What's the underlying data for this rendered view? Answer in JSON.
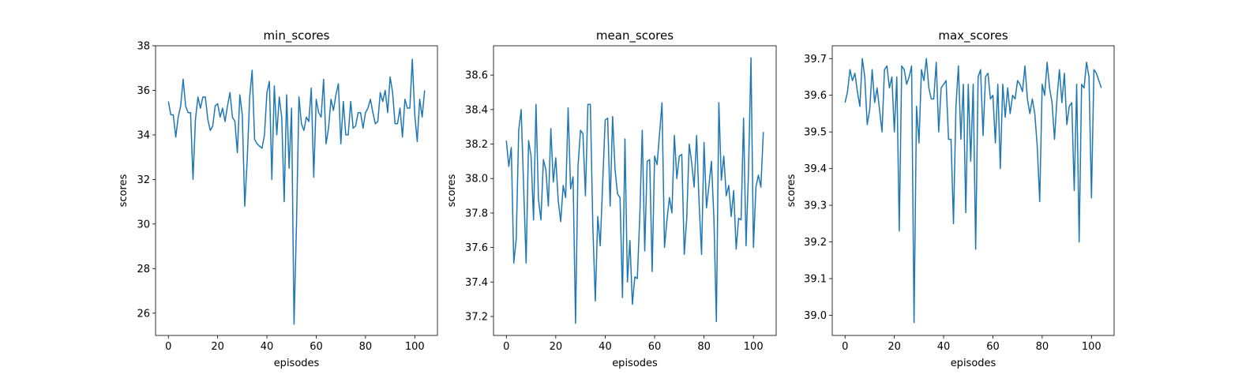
{
  "chart_data": [
    {
      "type": "line",
      "title": "min_scores",
      "xlabel": "episodes",
      "ylabel": "scores",
      "xlim": [
        -5.2,
        109.2
      ],
      "ylim": [
        25.0,
        38.0
      ],
      "xticks": [
        0,
        20,
        40,
        60,
        80,
        100
      ],
      "yticks": [
        26,
        28,
        30,
        32,
        34,
        36,
        38
      ],
      "xtick_labels": [
        "0",
        "20",
        "40",
        "60",
        "80",
        "100"
      ],
      "ytick_labels": [
        "26",
        "28",
        "30",
        "32",
        "34",
        "36",
        "38"
      ],
      "color": "#1f77b4",
      "grid": false,
      "x": [
        0,
        1,
        2,
        3,
        4,
        5,
        6,
        7,
        8,
        9,
        10,
        11,
        12,
        13,
        14,
        15,
        16,
        17,
        18,
        19,
        20,
        21,
        22,
        23,
        24,
        25,
        26,
        27,
        28,
        29,
        30,
        31,
        32,
        33,
        34,
        35,
        36,
        37,
        38,
        39,
        40,
        41,
        42,
        43,
        44,
        45,
        46,
        47,
        48,
        49,
        50,
        51,
        52,
        53,
        54,
        55,
        56,
        57,
        58,
        59,
        60,
        61,
        62,
        63,
        64,
        65,
        66,
        67,
        68,
        69,
        70,
        71,
        72,
        73,
        74,
        75,
        76,
        77,
        78,
        79,
        80,
        81,
        82,
        83,
        84,
        85,
        86,
        87,
        88,
        89,
        90,
        91,
        92,
        93,
        94,
        95,
        96,
        97,
        98,
        99,
        100,
        101,
        102,
        103,
        104
      ],
      "values": [
        35.5,
        34.9,
        34.9,
        33.9,
        34.8,
        35.3,
        36.5,
        35.3,
        35.0,
        35.0,
        32.0,
        34.7,
        35.7,
        35.2,
        35.7,
        35.7,
        34.7,
        34.2,
        34.4,
        35.3,
        35.4,
        34.8,
        35.2,
        34.6,
        35.3,
        35.9,
        34.8,
        34.6,
        33.2,
        35.8,
        34.9,
        30.8,
        32.9,
        35.7,
        36.9,
        33.8,
        33.6,
        33.5,
        33.4,
        34.0,
        35.9,
        36.4,
        32.0,
        36.2,
        34.0,
        35.7,
        34.8,
        31.0,
        35.8,
        32.5,
        35.2,
        25.5,
        30.0,
        35.7,
        34.5,
        34.2,
        34.8,
        34.6,
        36.1,
        32.1,
        35.6,
        35.0,
        34.8,
        36.5,
        33.6,
        34.3,
        35.6,
        35.1,
        35.8,
        36.3,
        33.6,
        35.5,
        34.0,
        34.0,
        35.5,
        34.3,
        34.4,
        35.0,
        35.0,
        34.3,
        35.0,
        35.2,
        35.6,
        35.0,
        34.5,
        34.6,
        35.9,
        35.5,
        36.0,
        35.0,
        36.6,
        35.9,
        34.5,
        34.5,
        35.2,
        33.9,
        35.6,
        35.2,
        35.2,
        37.4,
        34.9,
        33.7,
        35.6,
        34.8,
        36.0
      ]
    },
    {
      "type": "line",
      "title": "mean_scores",
      "xlabel": "episodes",
      "ylabel": "scores",
      "xlim": [
        -5.2,
        109.2
      ],
      "ylim": [
        37.09,
        38.77
      ],
      "xticks": [
        0,
        20,
        40,
        60,
        80,
        100
      ],
      "yticks": [
        37.2,
        37.4,
        37.6,
        37.8,
        38.0,
        38.2,
        38.4,
        38.6
      ],
      "xtick_labels": [
        "0",
        "20",
        "40",
        "60",
        "80",
        "100"
      ],
      "ytick_labels": [
        "37.2",
        "37.4",
        "37.6",
        "37.8",
        "38.0",
        "38.2",
        "38.4",
        "38.6"
      ],
      "color": "#1f77b4",
      "grid": false,
      "x": [
        0,
        1,
        2,
        3,
        4,
        5,
        6,
        7,
        8,
        9,
        10,
        11,
        12,
        13,
        14,
        15,
        16,
        17,
        18,
        19,
        20,
        21,
        22,
        23,
        24,
        25,
        26,
        27,
        28,
        29,
        30,
        31,
        32,
        33,
        34,
        35,
        36,
        37,
        38,
        39,
        40,
        41,
        42,
        43,
        44,
        45,
        46,
        47,
        48,
        49,
        50,
        51,
        52,
        53,
        54,
        55,
        56,
        57,
        58,
        59,
        60,
        61,
        62,
        63,
        64,
        65,
        66,
        67,
        68,
        69,
        70,
        71,
        72,
        73,
        74,
        75,
        76,
        77,
        78,
        79,
        80,
        81,
        82,
        83,
        84,
        85,
        86,
        87,
        88,
        89,
        90,
        91,
        92,
        93,
        94,
        95,
        96,
        97,
        98,
        99,
        100,
        101,
        102,
        103,
        104
      ],
      "values": [
        38.22,
        38.07,
        38.18,
        37.51,
        37.65,
        38.28,
        38.4,
        37.95,
        37.51,
        38.22,
        38.13,
        37.76,
        38.43,
        37.88,
        37.76,
        38.11,
        38.05,
        37.84,
        38.29,
        37.98,
        38.12,
        37.87,
        37.75,
        37.96,
        37.89,
        38.41,
        37.94,
        38.01,
        37.16,
        38.07,
        38.28,
        38.26,
        37.9,
        38.43,
        38.43,
        37.72,
        37.29,
        37.78,
        37.61,
        37.98,
        38.34,
        38.35,
        37.84,
        38.36,
        38.05,
        37.91,
        37.89,
        37.31,
        38.23,
        37.4,
        37.64,
        37.27,
        37.43,
        37.42,
        37.78,
        38.28,
        37.58,
        38.1,
        38.11,
        37.46,
        38.13,
        38.08,
        38.26,
        38.44,
        37.6,
        37.76,
        37.89,
        37.8,
        38.25,
        38.0,
        38.13,
        38.14,
        37.56,
        37.77,
        38.2,
        38.09,
        37.95,
        38.25,
        37.86,
        37.56,
        38.21,
        37.83,
        37.96,
        38.1,
        37.77,
        37.17,
        38.44,
        37.99,
        38.13,
        37.9,
        37.96,
        37.78,
        37.93,
        37.59,
        37.77,
        37.76,
        38.35,
        37.61,
        38.04,
        38.7,
        37.6,
        37.95,
        38.02,
        37.95,
        38.27
      ]
    },
    {
      "type": "line",
      "title": "max_scores",
      "xlabel": "episodes",
      "ylabel": "scores",
      "xlim": [
        -5.2,
        109.2
      ],
      "ylim": [
        38.945,
        39.735
      ],
      "xticks": [
        0,
        20,
        40,
        60,
        80,
        100
      ],
      "yticks": [
        39.0,
        39.1,
        39.2,
        39.3,
        39.4,
        39.5,
        39.6,
        39.7
      ],
      "xtick_labels": [
        "0",
        "20",
        "40",
        "60",
        "80",
        "100"
      ],
      "ytick_labels": [
        "39.0",
        "39.1",
        "39.2",
        "39.3",
        "39.4",
        "39.5",
        "39.6",
        "39.7"
      ],
      "color": "#1f77b4",
      "grid": false,
      "x": [
        0,
        1,
        2,
        3,
        4,
        5,
        6,
        7,
        8,
        9,
        10,
        11,
        12,
        13,
        14,
        15,
        16,
        17,
        18,
        19,
        20,
        21,
        22,
        23,
        24,
        25,
        26,
        27,
        28,
        29,
        30,
        31,
        32,
        33,
        34,
        35,
        36,
        37,
        38,
        39,
        40,
        41,
        42,
        43,
        44,
        45,
        46,
        47,
        48,
        49,
        50,
        51,
        52,
        53,
        54,
        55,
        56,
        57,
        58,
        59,
        60,
        61,
        62,
        63,
        64,
        65,
        66,
        67,
        68,
        69,
        70,
        71,
        72,
        73,
        74,
        75,
        76,
        77,
        78,
        79,
        80,
        81,
        82,
        83,
        84,
        85,
        86,
        87,
        88,
        89,
        90,
        91,
        92,
        93,
        94,
        95,
        96,
        97,
        98,
        99,
        100,
        101,
        102,
        103,
        104
      ],
      "values": [
        39.58,
        39.61,
        39.67,
        39.64,
        39.66,
        39.61,
        39.57,
        39.7,
        39.65,
        39.52,
        39.56,
        39.67,
        39.58,
        39.62,
        39.56,
        39.5,
        39.67,
        39.68,
        39.62,
        39.65,
        39.5,
        39.65,
        39.23,
        39.68,
        39.67,
        39.63,
        39.65,
        39.68,
        38.98,
        39.57,
        39.47,
        39.67,
        39.64,
        39.7,
        39.62,
        39.59,
        39.59,
        39.69,
        39.5,
        39.62,
        39.63,
        39.64,
        39.48,
        39.48,
        39.25,
        39.57,
        39.68,
        39.48,
        39.63,
        39.28,
        39.63,
        39.42,
        39.63,
        39.18,
        39.65,
        39.67,
        39.49,
        39.65,
        39.66,
        39.59,
        39.6,
        39.47,
        39.63,
        39.4,
        39.63,
        39.54,
        39.62,
        39.55,
        39.6,
        39.59,
        39.64,
        39.63,
        39.61,
        39.68,
        39.59,
        39.55,
        39.59,
        39.55,
        39.46,
        39.31,
        39.63,
        39.6,
        39.69,
        39.62,
        39.58,
        39.48,
        39.59,
        39.67,
        39.58,
        39.66,
        39.52,
        39.57,
        39.58,
        39.34,
        39.63,
        39.2,
        39.63,
        39.62,
        39.69,
        39.65,
        39.32,
        39.67,
        39.66,
        39.64,
        39.62
      ]
    }
  ]
}
